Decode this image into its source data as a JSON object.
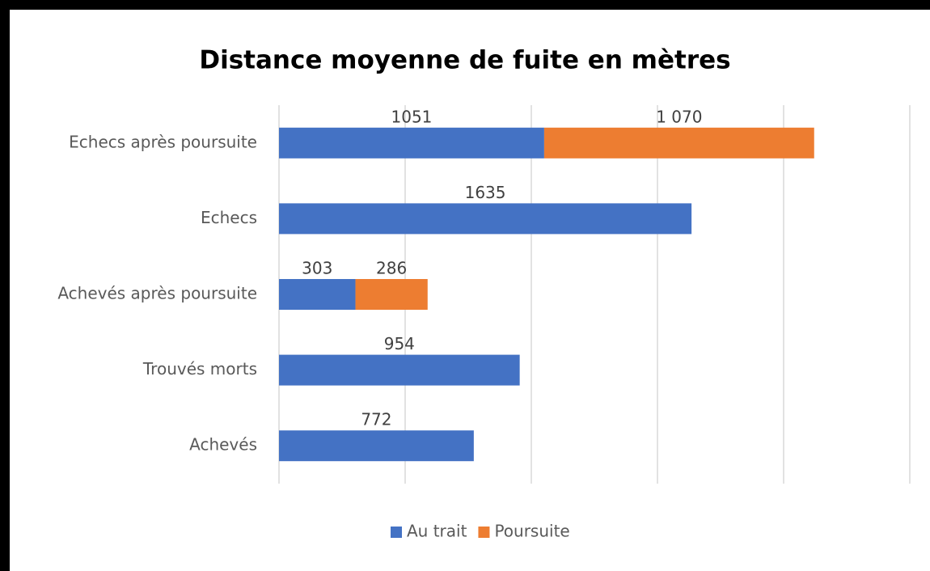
{
  "chart_data": {
    "type": "stacked_bar_horizontal",
    "title": "Distance moyenne de fuite en mètres",
    "categories": [
      "Echecs après poursuite",
      "Echecs",
      "Achevés après poursuite",
      "Trouvés morts",
      "Achevés"
    ],
    "series": [
      {
        "name": "Au trait",
        "color": "#4472c4",
        "values": [
          1051,
          1635,
          303,
          954,
          772
        ]
      },
      {
        "name": "Poursuite",
        "color": "#ed7d31",
        "values": [
          1070,
          null,
          286,
          null,
          null
        ],
        "value_labels": [
          "1 070",
          null,
          "286",
          null,
          null
        ]
      }
    ],
    "xlim": [
      0,
      2500
    ],
    "xticks": [
      0,
      500,
      1000,
      1500,
      2000,
      2500
    ],
    "grid": true,
    "legend": "bottom"
  }
}
